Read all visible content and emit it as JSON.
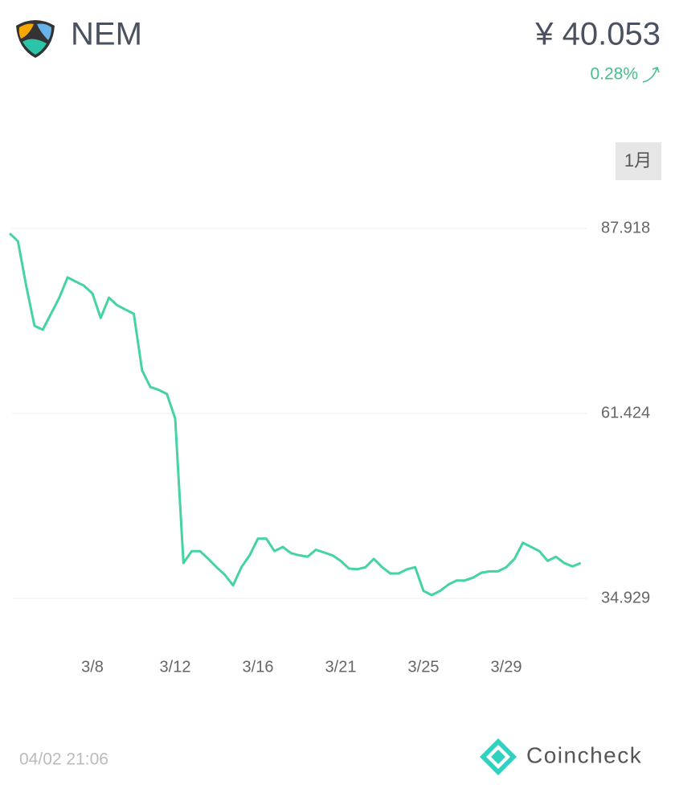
{
  "header": {
    "name": "NEM",
    "price": "¥ 40.053",
    "change": "0.28%"
  },
  "period": "1月",
  "timestamp": "04/02 21:06",
  "brand": "Coincheck",
  "chart_data": {
    "type": "line",
    "color": "#45d3a0",
    "grid": true,
    "categories": [
      null,
      null,
      null,
      null,
      null,
      null,
      null,
      null,
      null,
      null,
      "3/8",
      null,
      null,
      null,
      null,
      null,
      null,
      null,
      null,
      null,
      "3/12",
      null,
      null,
      null,
      null,
      null,
      null,
      null,
      null,
      null,
      "3/16",
      null,
      null,
      null,
      null,
      null,
      null,
      null,
      null,
      null,
      "3/21",
      null,
      null,
      null,
      null,
      null,
      null,
      null,
      null,
      null,
      "3/25",
      null,
      null,
      null,
      null,
      null,
      null,
      null,
      null,
      null,
      "3/29",
      null,
      null,
      null,
      null,
      null,
      null,
      null,
      null,
      null
    ],
    "values": [
      87.2,
      86.1,
      79.7,
      73.98,
      73.4,
      75.7,
      78.0,
      80.9,
      80.3,
      79.7,
      78.6,
      75.1,
      78.0,
      76.9,
      76.3,
      75.7,
      67.6,
      65.2,
      64.8,
      64.2,
      60.7,
      40.0,
      41.7,
      41.7,
      40.6,
      39.4,
      38.3,
      36.8,
      39.4,
      41.1,
      43.5,
      43.5,
      41.7,
      42.3,
      41.4,
      41.1,
      40.9,
      41.9,
      41.5,
      41.1,
      40.3,
      39.2,
      39.1,
      39.4,
      40.6,
      39.4,
      38.5,
      38.5,
      39.1,
      39.4,
      36.0,
      35.4,
      36.0,
      36.9,
      37.5,
      37.5,
      37.9,
      38.6,
      38.8,
      38.8,
      39.4,
      40.6,
      42.9,
      42.3,
      41.7,
      40.3,
      40.9,
      40.0,
      39.5,
      40.0
    ],
    "ylim": [
      34.929,
      87.918
    ],
    "yticks": [
      34.929,
      61.424,
      87.918
    ]
  }
}
